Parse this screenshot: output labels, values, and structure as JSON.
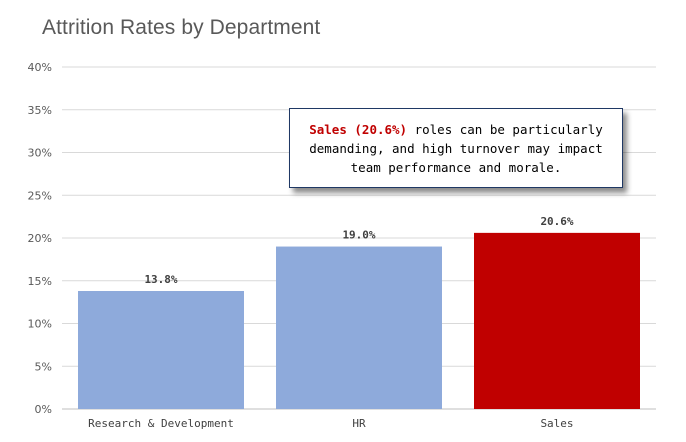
{
  "chart_data": {
    "type": "bar",
    "title": "Attrition Rates by Department",
    "categories": [
      "Research & Development",
      "HR",
      "Sales"
    ],
    "values": [
      13.8,
      19.0,
      20.6
    ],
    "value_labels": [
      "13.8%",
      "19.0%",
      "20.6%"
    ],
    "bar_colors": [
      "#8eaadb",
      "#8eaadb",
      "#c00000"
    ],
    "ylim": [
      0,
      40
    ],
    "yticks": [
      0,
      5,
      10,
      15,
      20,
      25,
      30,
      35,
      40
    ],
    "ytick_labels": [
      "0%",
      "5%",
      "10%",
      "15%",
      "20%",
      "25%",
      "30%",
      "35%",
      "40%"
    ],
    "grid": true,
    "legend": "none",
    "annotation": {
      "highlight": "Sales (20.6%)",
      "text": " roles can be particularly demanding, and high turnover may impact team performance and morale.",
      "highlight_color": "#c00000"
    }
  }
}
